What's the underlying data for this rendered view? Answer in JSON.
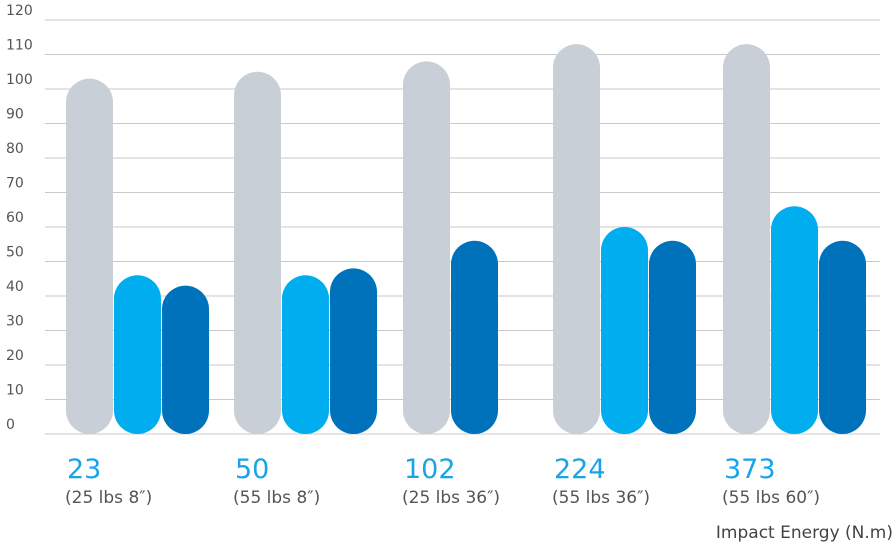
{
  "chart_data": {
    "type": "bar",
    "categories": [
      "23",
      "50",
      "102",
      "224",
      "373"
    ],
    "category_sublabels": [
      "(25 lbs 8″)",
      "(55 lbs 8″)",
      "(25 lbs 36″)",
      "(55 lbs 36″)",
      "(55 lbs 60″)"
    ],
    "series": [
      {
        "color": "#c8cfd7",
        "values": [
          103,
          105,
          108,
          113,
          113
        ]
      },
      {
        "color": "#00aeef",
        "values": [
          46,
          46,
          null,
          60,
          66
        ]
      },
      {
        "color": "#0072bc",
        "values": [
          43,
          48,
          56,
          56,
          56
        ]
      }
    ],
    "yticks": [
      0,
      10,
      20,
      30,
      40,
      50,
      60,
      70,
      80,
      90,
      100,
      110,
      120
    ],
    "ylim": [
      0,
      120
    ],
    "xlabel": "Impact Energy (N.m)",
    "ylabel": "",
    "title": "",
    "grid": true
  }
}
